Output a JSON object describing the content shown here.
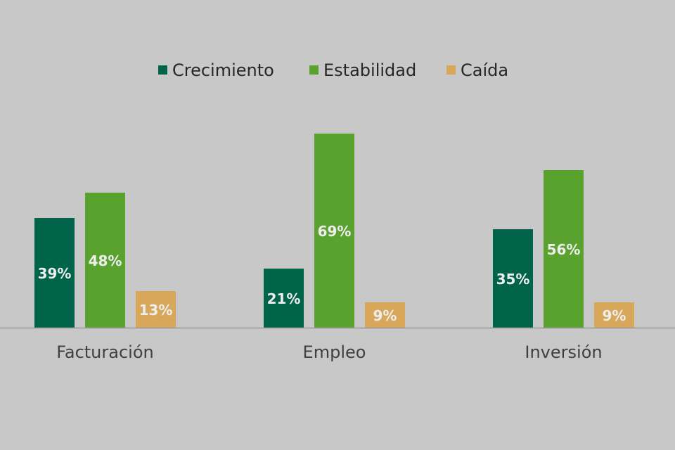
{
  "chart_data": {
    "type": "bar",
    "title": "",
    "xlabel": "",
    "ylabel": "",
    "categories": [
      "Facturación",
      "Empleo",
      "Inversión"
    ],
    "series": [
      {
        "name": "Crecimiento",
        "values": [
          39,
          21,
          35
        ],
        "labels": [
          "39%",
          "21%",
          "35%"
        ],
        "color": "#00644b",
        "label_color": "#eeeeee"
      },
      {
        "name": "Estabilidad",
        "values": [
          48,
          69,
          56
        ],
        "labels": [
          "48%",
          "69%",
          "56%"
        ],
        "color": "#5aa22e",
        "label_color": "#eeeeee"
      },
      {
        "name": "Caída",
        "values": [
          13,
          9,
          9
        ],
        "labels": [
          "13%",
          "9%",
          "9%"
        ],
        "color": "#d8a75a",
        "label_color": "#eeeeee"
      }
    ],
    "ylim": [
      0,
      70
    ],
    "grid": false,
    "legend_position": "top-center",
    "value_axis_visible": false,
    "baseline_color": "#9a9a9a"
  }
}
